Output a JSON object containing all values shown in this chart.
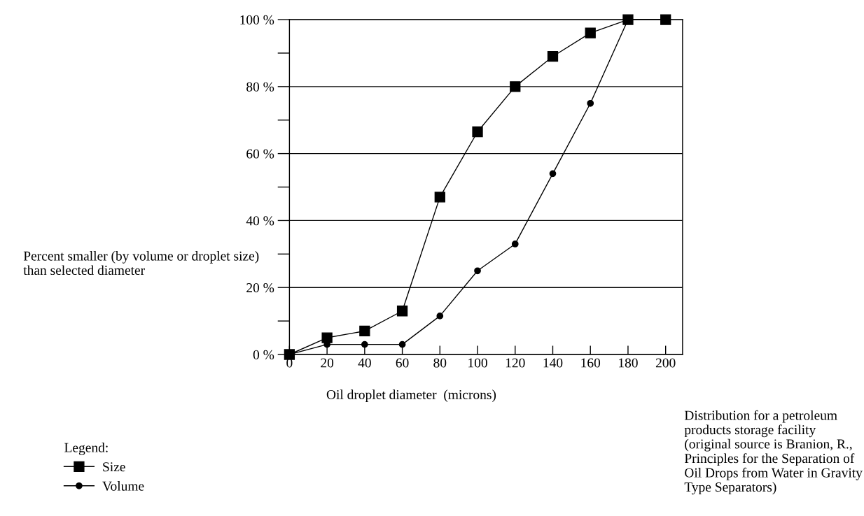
{
  "chart_data": {
    "type": "line",
    "xlabel": "Oil droplet diameter  (microns)",
    "ylabel": "Percent smaller (by volume or droplet size) than selected diameter",
    "legend_title": "Legend:",
    "x": [
      0,
      20,
      40,
      60,
      80,
      100,
      120,
      140,
      160,
      180,
      200
    ],
    "series": [
      {
        "name": "Size",
        "color": "#000000",
        "marker": "square",
        "values": [
          0,
          5,
          7,
          13,
          47,
          66.5,
          80,
          89,
          96,
          100,
          100
        ]
      },
      {
        "name": "Volume",
        "color": "#000000",
        "marker": "circle",
        "values": [
          0,
          3,
          3,
          3,
          11.5,
          25,
          33,
          54,
          75,
          100,
          null
        ]
      }
    ],
    "xlim": [
      0,
      209
    ],
    "xticks": [
      0,
      20,
      40,
      60,
      80,
      100,
      120,
      140,
      160,
      180,
      200
    ],
    "ylim": [
      0,
      100
    ],
    "yticks": [
      {
        "value": 0,
        "label": "0 %"
      },
      {
        "value": 20,
        "label": "20 %"
      },
      {
        "value": 40,
        "label": "40 %"
      },
      {
        "value": 60,
        "label": "60 %"
      },
      {
        "value": 80,
        "label": "80 %"
      },
      {
        "value": 100,
        "label": "100 %"
      }
    ],
    "grid": "y",
    "legend": "bottom left",
    "line_style": "solid",
    "annotations": [
      "Distribution for a petroleum products storage facility (original source is Branion, R., Principles for the Separation of Oil Drops from Water in Gravity Type Separators)"
    ]
  }
}
